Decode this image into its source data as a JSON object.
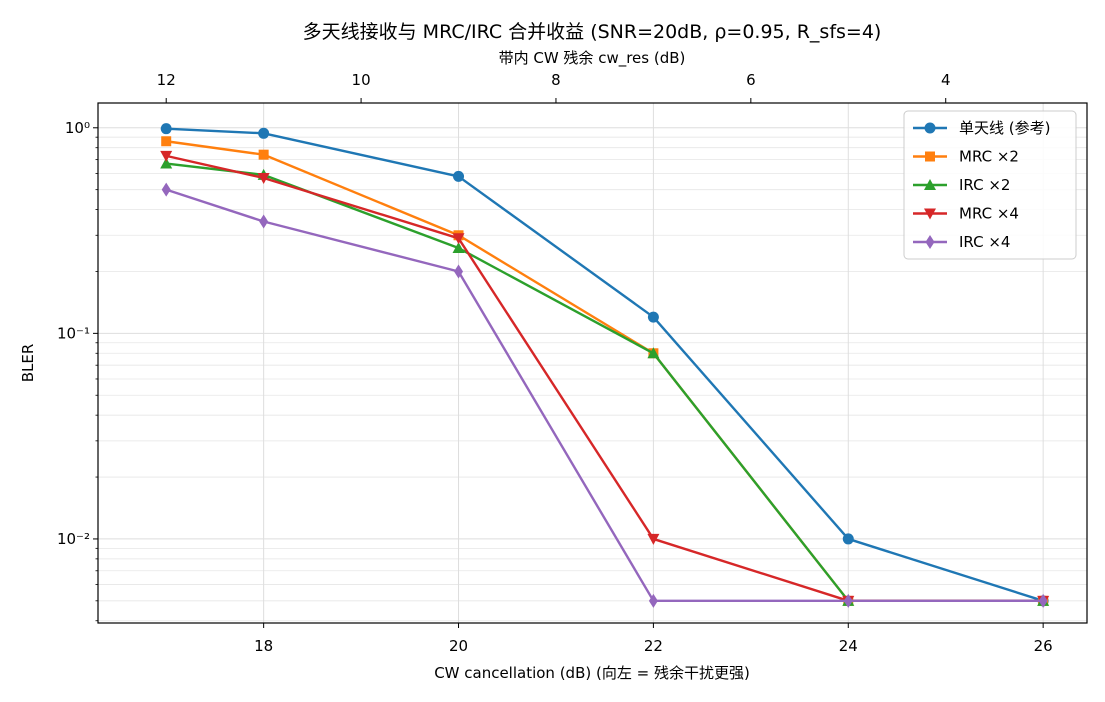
{
  "chart_data": {
    "type": "line",
    "title": "多天线接收与 MRC/IRC 合并收益 (SNR=20dB, ρ=0.95, R_sfs=4)",
    "xlabel": "CW cancellation (dB)   (向左 = 残余干扰更强)",
    "ylabel": "BLER",
    "x2label": "带内 CW 残余 cw_res (dB)",
    "y_scale": "log",
    "x": [
      17,
      18,
      20,
      22,
      24,
      26
    ],
    "xlim": [
      16.3,
      26.45
    ],
    "ylim": [
      0.0039,
      1.32
    ],
    "x_ticks": [
      18,
      20,
      22,
      24,
      26
    ],
    "x_tick_labels": [
      "18",
      "20",
      "22",
      "24",
      "26"
    ],
    "y_ticks": [
      0.01,
      0.1,
      1
    ],
    "y_tick_labels": [
      "10⁻²",
      "10⁻¹",
      "10⁰"
    ],
    "x2_ticks": [
      12,
      10,
      8,
      6,
      4
    ],
    "x2_tick_labels": [
      "12",
      "10",
      "8",
      "6",
      "4"
    ],
    "x2_relation": "cw_res = 29 - CW cancellation",
    "grid": true,
    "legend_position": "top-right",
    "series": [
      {
        "name": "单天线 (参考)",
        "color": "#1f77b4",
        "marker": "circle",
        "values": [
          0.99,
          0.94,
          0.58,
          0.12,
          0.01,
          0.005
        ]
      },
      {
        "name": "MRC ×2",
        "color": "#ff7f0e",
        "marker": "square",
        "values": [
          0.86,
          0.74,
          0.3,
          0.08,
          0.005,
          0.005
        ]
      },
      {
        "name": "IRC ×2",
        "color": "#2ca02c",
        "marker": "triangle-up",
        "values": [
          0.67,
          0.59,
          0.26,
          0.08,
          0.005,
          0.005
        ]
      },
      {
        "name": "MRC ×4",
        "color": "#d62728",
        "marker": "triangle-down",
        "values": [
          0.73,
          0.57,
          0.29,
          0.01,
          0.005,
          0.005
        ]
      },
      {
        "name": "IRC ×4",
        "color": "#9467bd",
        "marker": "diamond",
        "values": [
          0.5,
          0.35,
          0.2,
          0.005,
          0.005,
          0.005
        ]
      }
    ]
  }
}
